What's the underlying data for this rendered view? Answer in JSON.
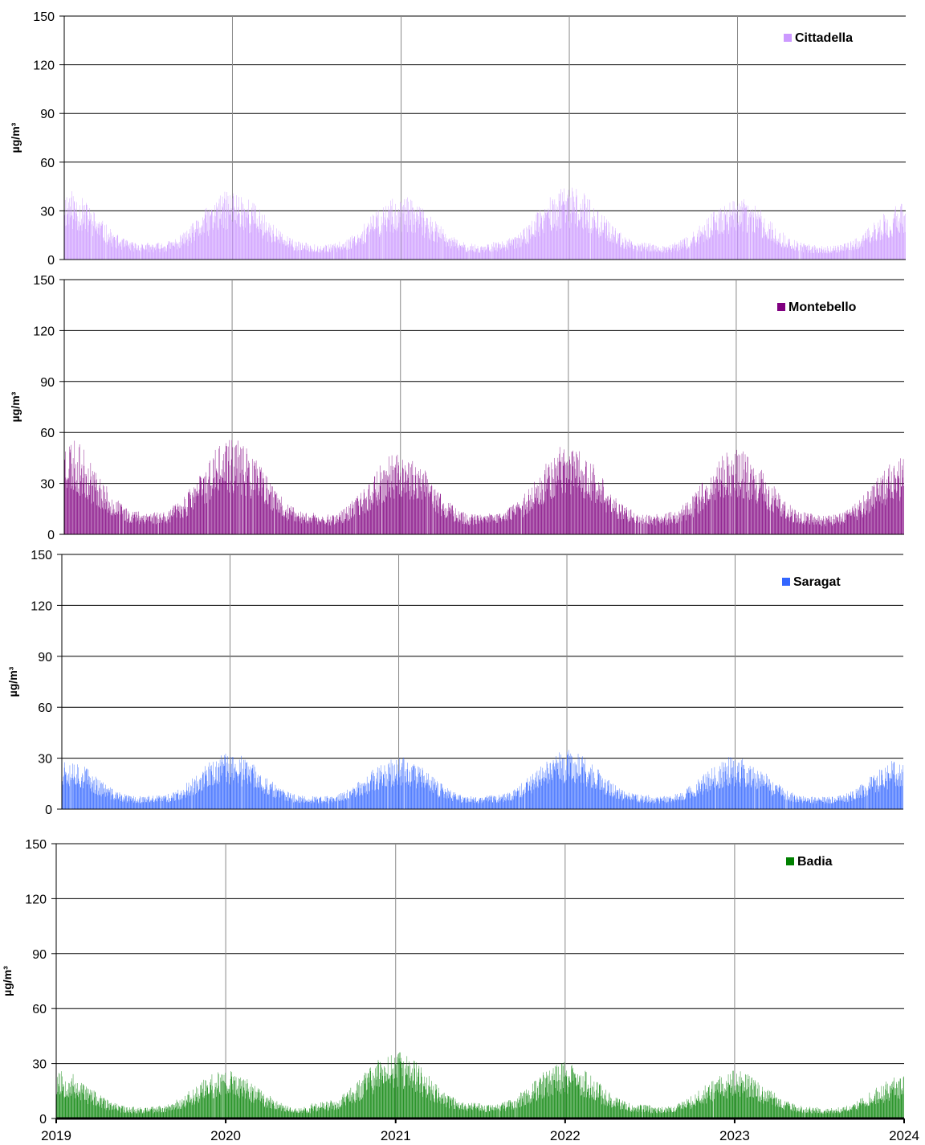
{
  "chart_data": [
    {
      "type": "bar",
      "series": [
        {
          "name": "Cittadella",
          "color": "#cc99ff",
          "seed": 11,
          "scale": 1.0,
          "peaks": [
            45,
            44,
            40,
            46,
            39,
            36
          ]
        }
      ],
      "ylabel": "µg/m³",
      "ylim": [
        0,
        150
      ],
      "yticks": [
        0,
        30,
        60,
        90,
        120,
        150
      ],
      "xlim": [
        "2019-01-01",
        "2024-01-01"
      ],
      "grid": true,
      "legend": "top-right"
    },
    {
      "type": "bar",
      "series": [
        {
          "name": "Montebello",
          "color": "#800080",
          "seed": 23,
          "scale": 1.0,
          "peaks": [
            60,
            58,
            50,
            55,
            52,
            48
          ]
        }
      ],
      "ylabel": "µg/m³",
      "ylim": [
        0,
        150
      ],
      "yticks": [
        0,
        30,
        60,
        90,
        120,
        150
      ],
      "xlim": [
        "2019-01-01",
        "2024-01-01"
      ],
      "grid": true,
      "legend": "top-right"
    },
    {
      "type": "bar",
      "series": [
        {
          "name": "Saragat",
          "color": "#3366ff",
          "seed": 37,
          "scale": 1.0,
          "peaks": [
            33,
            34,
            32,
            36,
            32,
            31
          ]
        }
      ],
      "ylabel": "µg/m³",
      "ylim": [
        0,
        150
      ],
      "yticks": [
        0,
        30,
        60,
        90,
        120,
        150
      ],
      "xlim": [
        "2019-01-01",
        "2024-01-01"
      ],
      "grid": true,
      "legend": "top-right"
    },
    {
      "type": "bar",
      "series": [
        {
          "name": "Badia",
          "color": "#008000",
          "seed": 53,
          "scale": 1.0,
          "peaks": [
            28,
            27,
            38,
            32,
            27,
            24
          ]
        }
      ],
      "ylabel": "µg/m³",
      "ylim": [
        0,
        150
      ],
      "yticks": [
        0,
        30,
        60,
        90,
        120,
        150
      ],
      "xlim": [
        "2019-01-01",
        "2024-01-01"
      ],
      "xticks": [
        "2019",
        "2020",
        "2021",
        "2022",
        "2023",
        "2024"
      ],
      "grid": true,
      "legend": "top-right"
    }
  ]
}
